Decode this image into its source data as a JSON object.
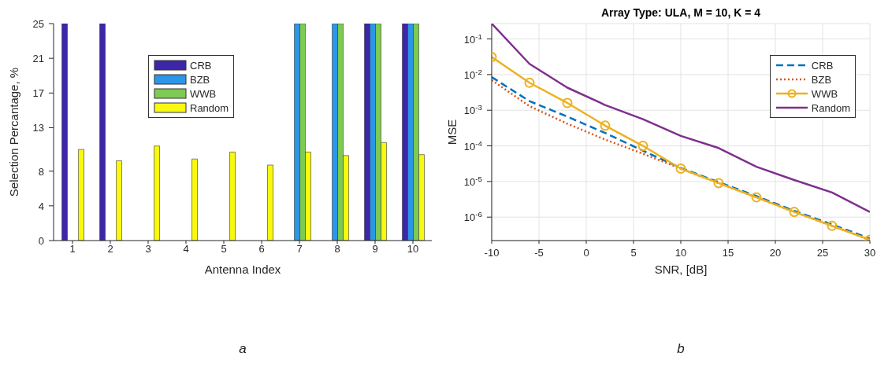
{
  "chart_data": [
    {
      "type": "bar",
      "categories": [
        "1",
        "2",
        "3",
        "4",
        "5",
        "6",
        "7",
        "8",
        "9",
        "10"
      ],
      "xlabel": "Antenna Index",
      "ylabel": "Selection Percantage, %",
      "ylim": [
        0,
        25
      ],
      "yticks": [
        0,
        4,
        8,
        13,
        17,
        21,
        25
      ],
      "grid": false,
      "legend": "top left",
      "series": [
        {
          "name": "CRB",
          "color": "#3e26a8",
          "values": [
            25,
            25,
            0,
            0,
            0,
            0,
            0,
            0,
            25,
            25
          ]
        },
        {
          "name": "BZB",
          "color": "#2c96e8",
          "values": [
            0,
            0,
            0,
            0,
            0,
            0,
            25,
            25,
            25,
            25
          ]
        },
        {
          "name": "WWB",
          "color": "#7ecb53",
          "values": [
            0,
            0,
            0,
            0,
            0,
            0,
            25,
            25,
            25,
            25
          ]
        },
        {
          "name": "Random",
          "color": "#f9f90f",
          "values": [
            10.5,
            9.2,
            10.9,
            9.4,
            10.2,
            8.7,
            10.2,
            9.8,
            11.3,
            9.9
          ]
        }
      ],
      "annotations": [
        "a"
      ]
    },
    {
      "type": "line",
      "title": "Array Type: ULA, M = 10, K = 4",
      "xlabel": "SNR, [dB]",
      "ylabel": "MSE",
      "log": "y",
      "grid": true,
      "legend": "top right",
      "x": [
        -10,
        -6,
        -2,
        2,
        6,
        10,
        14,
        18,
        22,
        26,
        30
      ],
      "xlim": [
        -10,
        30
      ],
      "xticks": [
        -10,
        -5,
        0,
        5,
        10,
        15,
        20,
        25,
        30
      ],
      "ylim": [
        2.2e-07,
        0.27
      ],
      "yticks": [
        {
          "value": 1e-06,
          "label": "10$^{-6}$"
        },
        {
          "value": 1e-05,
          "label": "10$^{-5}$"
        },
        {
          "value": 0.0001,
          "label": "10$^{-4}$"
        },
        {
          "value": 0.001,
          "label": "10$^{-3}$"
        },
        {
          "value": 0.01,
          "label": "10$^{-2}$"
        },
        {
          "value": 0.1,
          "label": "10$^{-1}$"
        }
      ],
      "series": [
        {
          "name": "CRB",
          "color": "#0072bd",
          "line_style": "dashed",
          "marker": "none",
          "values": [
            0.0085,
            0.0018,
            0.00066,
            0.00023,
            7.3e-05,
            2.4e-05,
            9.6e-06,
            3.9e-06,
            1.5e-06,
            6.2e-07,
            2.5e-07
          ]
        },
        {
          "name": "BZB",
          "color": "#d95319",
          "line_style": "dotted",
          "marker": "none",
          "values": [
            0.007,
            0.0013,
            0.00042,
            0.00015,
            6e-05,
            2.3e-05,
            9e-06,
            3.6e-06,
            1.4e-06,
            5.7e-07,
            2.3e-07
          ]
        },
        {
          "name": "WWB",
          "color": "#edb120",
          "line_style": "solid",
          "marker": "circle",
          "values": [
            0.031,
            0.0059,
            0.0016,
            0.00037,
            0.0001,
            2.3e-05,
            9e-06,
            3.6e-06,
            1.4e-06,
            5.7e-07,
            2.3e-07
          ]
        },
        {
          "name": "Random",
          "color": "#7e2f8e",
          "line_style": "solid",
          "marker": "none",
          "values": [
            0.27,
            0.02,
            0.0043,
            0.0014,
            0.00056,
            0.00019,
            8.7e-05,
            2.6e-05,
            1.1e-05,
            4.9e-06,
            1.4e-06
          ]
        }
      ],
      "annotations": [
        "b"
      ]
    }
  ]
}
